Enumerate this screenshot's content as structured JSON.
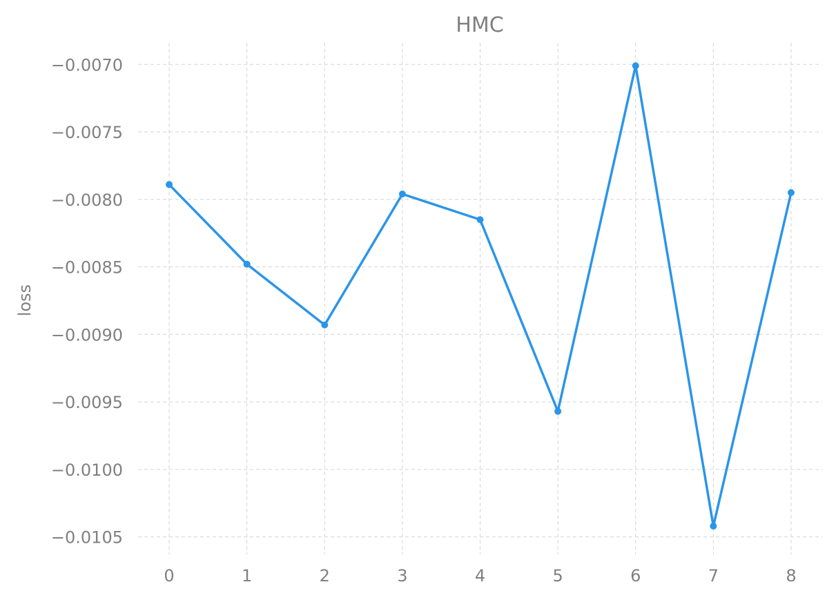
{
  "chart_data": {
    "type": "line",
    "title": "HMC",
    "xlabel": "",
    "ylabel": "loss",
    "x": [
      0,
      1,
      2,
      3,
      4,
      5,
      6,
      7,
      8
    ],
    "series": [
      {
        "values": [
          -0.00789,
          -0.00848,
          -0.00893,
          -0.00796,
          -0.00815,
          -0.00957,
          -0.00701,
          -0.01042,
          -0.00795
        ]
      }
    ],
    "xlim": [
      -0.4,
      8.4
    ],
    "ylim": [
      -0.01063,
      -0.00684
    ],
    "xticks": [
      0,
      1,
      2,
      3,
      4,
      5,
      6,
      7,
      8
    ],
    "xtick_labels": [
      "0",
      "1",
      "2",
      "3",
      "4",
      "5",
      "6",
      "7",
      "8"
    ],
    "yticks": [
      -0.007,
      -0.0075,
      -0.008,
      -0.0085,
      -0.009,
      -0.0095,
      -0.01,
      -0.0105
    ],
    "ytick_labels": [
      "−0.0070",
      "−0.0075",
      "−0.0080",
      "−0.0085",
      "−0.0090",
      "−0.0095",
      "−0.0100",
      "−0.0105"
    ],
    "grid": true,
    "colors": {
      "series": "#2b95e8",
      "grid": "#d3d3d3",
      "text": "#808080"
    }
  }
}
